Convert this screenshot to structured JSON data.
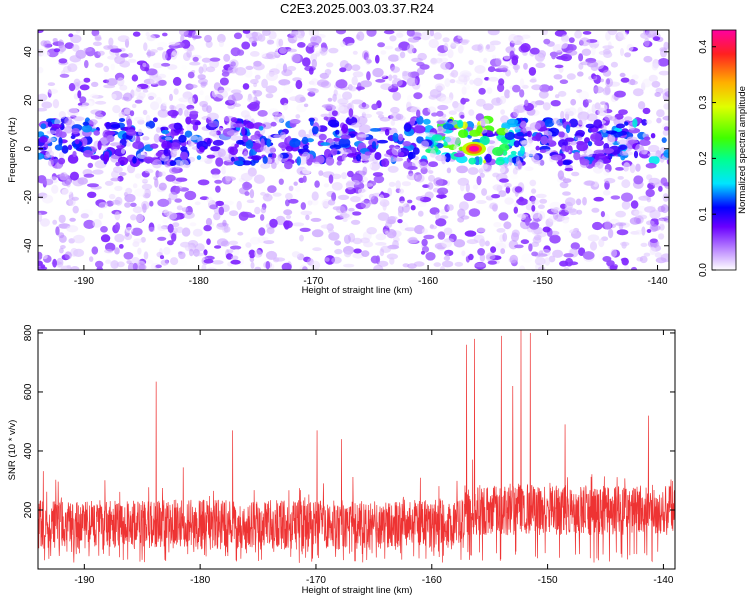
{
  "title": "C2E3.2025.003.03.37.R24",
  "chart_data": [
    {
      "type": "heatmap",
      "xlabel": "Height of straight line (km)",
      "ylabel": "Frequency (Hz)",
      "xlim": [
        -194,
        -139
      ],
      "ylim": [
        -50,
        49
      ],
      "xticks": [
        -190,
        -180,
        -170,
        -160,
        -150,
        -140
      ],
      "yticks": [
        -40,
        -20,
        0,
        20,
        40
      ],
      "colorbar": {
        "label": "Normalized spectral amplitude",
        "range": [
          0.0,
          0.43
        ],
        "ticks": [
          "0.0",
          "0.1",
          "0.2",
          "0.3",
          "0.4"
        ],
        "colormap": [
          "#ffffff",
          "#b070ff",
          "#6a00ff",
          "#0000ff",
          "#00e5ff",
          "#00ff40",
          "#c8ff00",
          "#ffe000",
          "#ff6000",
          "#ff0040",
          "#ff00a0"
        ]
      },
      "features": [
        {
          "description_band": "strong band",
          "freq_center": 3,
          "freq_halfwidth": 9
        },
        {
          "peak_height_km": -156,
          "peak_freq": 0,
          "peak_amplitude": 0.43
        }
      ]
    },
    {
      "type": "line",
      "xlabel": "Height of straight line (km)",
      "ylabel": "SNR (10 * v/v)",
      "xlim": [
        -194,
        -139
      ],
      "ylim": [
        0,
        810
      ],
      "xticks": [
        -190,
        -180,
        -170,
        -160,
        -150,
        -140
      ],
      "yticks": [
        200,
        400,
        600,
        800
      ],
      "color": "#ee3333",
      "baseline_mean": 150,
      "spikes": [
        {
          "x": -183.8,
          "y": 635
        },
        {
          "x": -177.2,
          "y": 470
        },
        {
          "x": -169.9,
          "y": 470
        },
        {
          "x": -167.8,
          "y": 440
        },
        {
          "x": -157.0,
          "y": 760
        },
        {
          "x": -156.3,
          "y": 780
        },
        {
          "x": -154.0,
          "y": 790
        },
        {
          "x": -153.0,
          "y": 620
        },
        {
          "x": -152.3,
          "y": 810
        },
        {
          "x": -151.5,
          "y": 800
        },
        {
          "x": -148.5,
          "y": 490
        },
        {
          "x": -141.3,
          "y": 520
        }
      ]
    }
  ]
}
